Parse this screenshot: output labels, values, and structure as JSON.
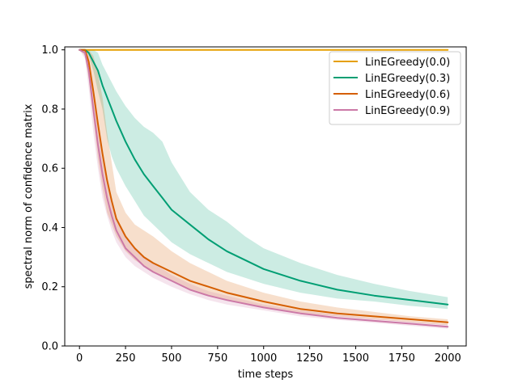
{
  "chart_data": {
    "type": "line",
    "xlabel": "time steps",
    "ylabel": "spectral norm of confidence matrix",
    "xlim": [
      -80,
      2100
    ],
    "ylim": [
      0.0,
      1.01
    ],
    "xticks": [
      0,
      250,
      500,
      750,
      1000,
      1250,
      1500,
      1750,
      2000
    ],
    "yticks": [
      0.0,
      0.2,
      0.4,
      0.6,
      0.8,
      1.0
    ],
    "ytick_labels": [
      "0.0",
      "0.2",
      "0.4",
      "0.6",
      "0.8",
      "1.0"
    ],
    "grid": false,
    "legend_position": "top-right",
    "series": [
      {
        "name": "LinEGreedy(0.0)",
        "color": "#E69F00",
        "x": [
          0,
          50,
          100,
          250,
          500,
          1000,
          1500,
          2000
        ],
        "y": [
          1.0,
          1.0,
          1.0,
          1.0,
          1.0,
          1.0,
          1.0,
          1.0
        ],
        "y_lower": [
          1.0,
          1.0,
          1.0,
          1.0,
          1.0,
          1.0,
          1.0,
          1.0
        ],
        "y_upper": [
          1.0,
          1.0,
          1.0,
          1.0,
          1.0,
          1.0,
          1.0,
          1.0
        ]
      },
      {
        "name": "LinEGreedy(0.3)",
        "color": "#009E73",
        "x": [
          0,
          30,
          50,
          75,
          100,
          125,
          150,
          175,
          200,
          250,
          300,
          350,
          400,
          450,
          500,
          600,
          700,
          800,
          900,
          1000,
          1200,
          1400,
          1600,
          1800,
          2000
        ],
        "y": [
          1.0,
          1.0,
          0.99,
          0.96,
          0.93,
          0.88,
          0.84,
          0.8,
          0.76,
          0.69,
          0.63,
          0.58,
          0.54,
          0.5,
          0.46,
          0.41,
          0.36,
          0.32,
          0.29,
          0.26,
          0.22,
          0.19,
          0.17,
          0.155,
          0.14
        ],
        "y_lower": [
          1.0,
          1.0,
          0.98,
          0.93,
          0.86,
          0.8,
          0.7,
          0.64,
          0.6,
          0.54,
          0.49,
          0.44,
          0.41,
          0.38,
          0.35,
          0.31,
          0.28,
          0.25,
          0.23,
          0.21,
          0.18,
          0.16,
          0.15,
          0.135,
          0.125
        ],
        "y_upper": [
          1.0,
          1.0,
          1.0,
          1.0,
          0.99,
          0.95,
          0.92,
          0.89,
          0.86,
          0.81,
          0.77,
          0.74,
          0.72,
          0.69,
          0.62,
          0.52,
          0.46,
          0.42,
          0.37,
          0.33,
          0.28,
          0.24,
          0.21,
          0.185,
          0.165
        ]
      },
      {
        "name": "LinEGreedy(0.6)",
        "color": "#D55E00",
        "x": [
          0,
          30,
          50,
          75,
          100,
          125,
          150,
          175,
          200,
          250,
          300,
          350,
          400,
          500,
          600,
          700,
          800,
          1000,
          1200,
          1400,
          1600,
          1800,
          2000
        ],
        "y": [
          1.0,
          1.0,
          0.96,
          0.86,
          0.75,
          0.65,
          0.56,
          0.49,
          0.43,
          0.37,
          0.33,
          0.3,
          0.28,
          0.25,
          0.22,
          0.2,
          0.18,
          0.15,
          0.125,
          0.11,
          0.1,
          0.09,
          0.08
        ],
        "y_lower": [
          1.0,
          0.98,
          0.9,
          0.77,
          0.63,
          0.53,
          0.45,
          0.41,
          0.37,
          0.32,
          0.29,
          0.27,
          0.25,
          0.22,
          0.19,
          0.17,
          0.155,
          0.13,
          0.11,
          0.1,
          0.09,
          0.08,
          0.07
        ],
        "y_upper": [
          1.0,
          1.0,
          1.0,
          0.98,
          0.92,
          0.84,
          0.72,
          0.62,
          0.52,
          0.45,
          0.41,
          0.39,
          0.37,
          0.32,
          0.28,
          0.25,
          0.22,
          0.18,
          0.15,
          0.13,
          0.115,
          0.1,
          0.09
        ]
      },
      {
        "name": "LinEGreedy(0.9)",
        "color": "#CC79A7",
        "x": [
          0,
          30,
          50,
          75,
          100,
          125,
          150,
          175,
          200,
          250,
          300,
          350,
          400,
          500,
          600,
          700,
          800,
          1000,
          1200,
          1400,
          1600,
          1800,
          2000
        ],
        "y": [
          1.0,
          0.99,
          0.93,
          0.8,
          0.68,
          0.58,
          0.5,
          0.44,
          0.39,
          0.33,
          0.3,
          0.27,
          0.25,
          0.22,
          0.19,
          0.17,
          0.155,
          0.13,
          0.11,
          0.095,
          0.085,
          0.075,
          0.065
        ],
        "y_lower": [
          1.0,
          0.97,
          0.87,
          0.72,
          0.6,
          0.5,
          0.44,
          0.39,
          0.35,
          0.3,
          0.27,
          0.25,
          0.23,
          0.2,
          0.175,
          0.155,
          0.14,
          0.12,
          0.1,
          0.088,
          0.078,
          0.068,
          0.058
        ],
        "y_upper": [
          1.0,
          1.0,
          0.98,
          0.88,
          0.76,
          0.65,
          0.56,
          0.49,
          0.43,
          0.37,
          0.33,
          0.3,
          0.28,
          0.24,
          0.21,
          0.185,
          0.17,
          0.14,
          0.12,
          0.105,
          0.093,
          0.083,
          0.073
        ]
      }
    ]
  }
}
